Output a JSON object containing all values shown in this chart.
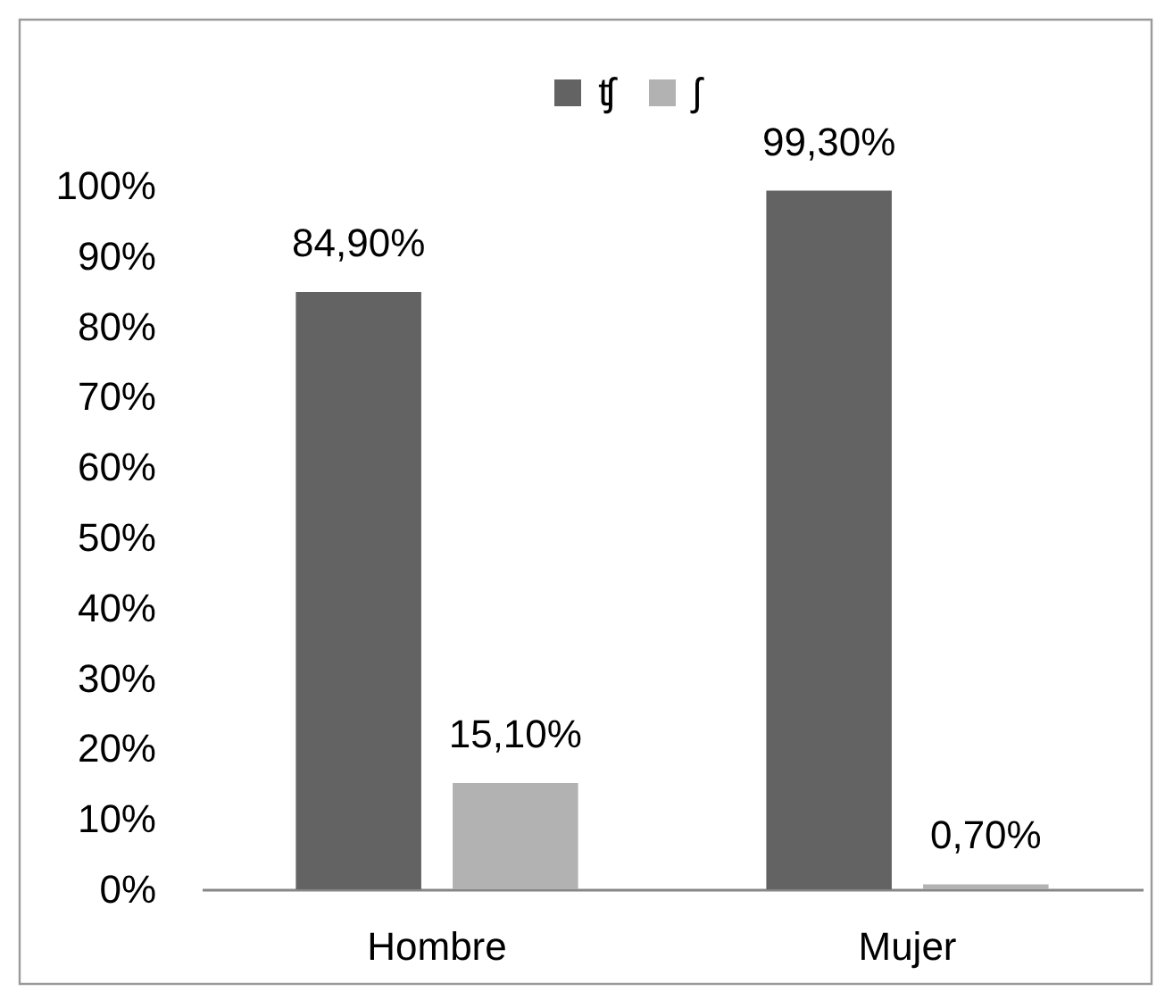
{
  "chart_data": {
    "type": "bar",
    "categories": [
      "Hombre",
      "Mujer"
    ],
    "series": [
      {
        "name": "ʧ",
        "color": "#636363",
        "values": [
          84.9,
          99.3
        ],
        "value_labels": [
          "84,90%",
          "99,30%"
        ]
      },
      {
        "name": "ʃ",
        "color": "#b2b2b2",
        "values": [
          15.1,
          0.7
        ],
        "value_labels": [
          "15,10%",
          "0,70%"
        ]
      }
    ],
    "ylim": [
      0,
      100
    ],
    "yticks": [
      {
        "value": 0,
        "label": "0%"
      },
      {
        "value": 10,
        "label": "10%"
      },
      {
        "value": 20,
        "label": "20%"
      },
      {
        "value": 30,
        "label": "30%"
      },
      {
        "value": 40,
        "label": "40%"
      },
      {
        "value": 50,
        "label": "50%"
      },
      {
        "value": 60,
        "label": "60%"
      },
      {
        "value": 70,
        "label": "70%"
      },
      {
        "value": 80,
        "label": "80%"
      },
      {
        "value": 90,
        "label": "90%"
      },
      {
        "value": 100,
        "label": "100%"
      }
    ],
    "legend": "top"
  }
}
